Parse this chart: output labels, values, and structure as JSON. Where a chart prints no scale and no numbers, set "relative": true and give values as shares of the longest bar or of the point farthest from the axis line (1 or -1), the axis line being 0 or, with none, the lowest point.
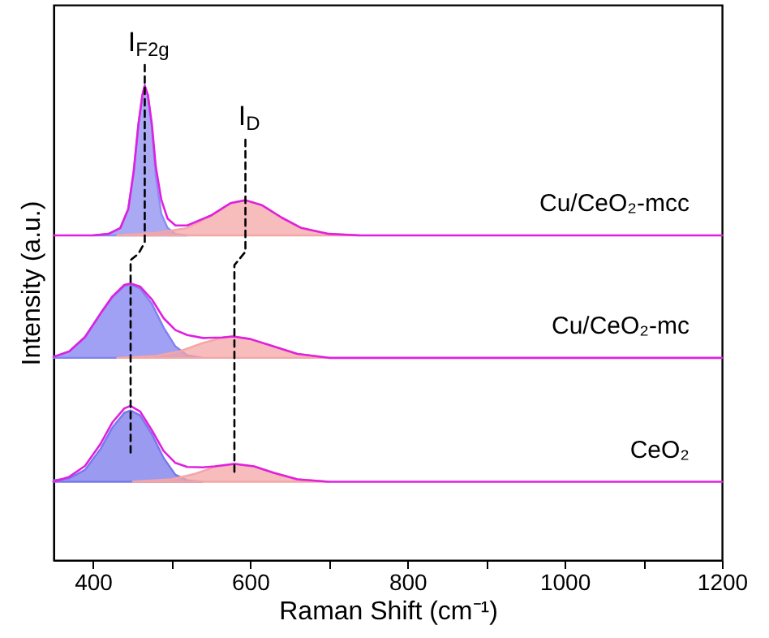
{
  "chart_data": {
    "type": "area",
    "relative": true,
    "xlabel": "Raman Shift (cm⁻¹)",
    "ylabel": "Intensity (a.u.)",
    "xlim": [
      350,
      1200
    ],
    "xticks": [
      400,
      {
        "value": 500,
        "label": null
      },
      600,
      {
        "value": 700,
        "label": null
      },
      800,
      {
        "value": 900,
        "label": null
      },
      1000,
      {
        "value": 1100,
        "label": null
      },
      1200
    ],
    "grid": false,
    "series": [
      {
        "color": "#8c8cf0",
        "x": [
          400,
          420,
          435,
          445,
          452,
          458,
          463,
          466,
          470,
          475,
          480,
          487,
          495,
          505,
          520
        ],
        "values": [
          0.655,
          0.658,
          0.67,
          0.708,
          0.785,
          0.88,
          0.938,
          0.957,
          0.938,
          0.871,
          0.775,
          0.699,
          0.67,
          0.658,
          0.655
        ]
      },
      {
        "color": "#f4a6a6",
        "x": [
          430,
          480,
          520,
          550,
          575,
          594,
          615,
          640,
          665,
          700,
          740
        ],
        "values": [
          0.655,
          0.66,
          0.67,
          0.694,
          0.72,
          0.726,
          0.716,
          0.691,
          0.67,
          0.658,
          0.655
        ]
      },
      {
        "type": "line",
        "name": "Cu/CeO₂-mcc",
        "color": "#e020e0",
        "x": [
          350,
          400,
          420,
          435,
          445,
          452,
          458,
          463,
          466,
          470,
          475,
          480,
          487,
          495,
          505,
          520,
          550,
          575,
          594,
          615,
          640,
          665,
          700,
          740,
          1200
        ],
        "values": [
          0.655,
          0.655,
          0.658,
          0.67,
          0.708,
          0.785,
          0.88,
          0.938,
          0.957,
          0.938,
          0.88,
          0.794,
          0.727,
          0.689,
          0.675,
          0.675,
          0.695,
          0.72,
          0.726,
          0.716,
          0.691,
          0.67,
          0.658,
          0.655,
          0.655
        ]
      },
      {
        "color": "#8080f0",
        "x": [
          350,
          370,
          390,
          410,
          425,
          440,
          448,
          460,
          475,
          490,
          505,
          520,
          540
        ],
        "values": [
          0.41,
          0.421,
          0.45,
          0.498,
          0.531,
          0.553,
          0.556,
          0.548,
          0.517,
          0.469,
          0.431,
          0.413,
          0.408
        ]
      },
      {
        "color": "#f4a6a6",
        "x": [
          430,
          480,
          510,
          540,
          565,
          578,
          600,
          630,
          660,
          700
        ],
        "values": [
          0.408,
          0.412,
          0.421,
          0.438,
          0.449,
          0.451,
          0.446,
          0.431,
          0.416,
          0.408
        ]
      },
      {
        "type": "line",
        "name": "Cu/CeO₂-mc",
        "color": "#e020e0",
        "x": [
          350,
          370,
          390,
          410,
          425,
          440,
          448,
          460,
          475,
          490,
          505,
          520,
          540,
          565,
          578,
          600,
          630,
          660,
          700,
          1200
        ],
        "values": [
          0.41,
          0.421,
          0.45,
          0.498,
          0.532,
          0.555,
          0.558,
          0.552,
          0.526,
          0.488,
          0.464,
          0.454,
          0.448,
          0.449,
          0.451,
          0.446,
          0.431,
          0.416,
          0.408,
          0.408
        ]
      },
      {
        "color": "#7878ec",
        "x": [
          350,
          370,
          390,
          410,
          425,
          440,
          448,
          460,
          475,
          490,
          505,
          520,
          540
        ],
        "values": [
          0.161,
          0.165,
          0.182,
          0.225,
          0.268,
          0.297,
          0.302,
          0.292,
          0.254,
          0.206,
          0.172,
          0.161,
          0.158
        ]
      },
      {
        "color": "#f4a6a6",
        "x": [
          450,
          500,
          530,
          555,
          580,
          605,
          630,
          660,
          700
        ],
        "values": [
          0.158,
          0.163,
          0.174,
          0.188,
          0.194,
          0.189,
          0.176,
          0.163,
          0.158
        ]
      },
      {
        "type": "line",
        "name": "CeO₂",
        "color": "#e020e0",
        "x": [
          350,
          370,
          390,
          410,
          425,
          440,
          448,
          460,
          475,
          490,
          505,
          520,
          540,
          555,
          580,
          605,
          630,
          660,
          700,
          1200
        ],
        "values": [
          0.158,
          0.168,
          0.19,
          0.235,
          0.278,
          0.306,
          0.311,
          0.3,
          0.262,
          0.22,
          0.196,
          0.188,
          0.187,
          0.189,
          0.194,
          0.189,
          0.176,
          0.163,
          0.158,
          0.158
        ]
      },
      {
        "type": "line",
        "color": "#000000",
        "line_style": "dashed",
        "x": [
          448,
          448,
          458,
          466,
          466
        ],
        "values": [
          0.217,
          0.605,
          0.618,
          0.641,
          1.0
        ]
      },
      {
        "type": "line",
        "color": "#000000",
        "line_style": "dashed",
        "x": [
          580,
          580,
          594,
          594
        ],
        "values": [
          0.178,
          0.595,
          0.622,
          0.852
        ]
      }
    ],
    "annotations": [
      {
        "text": "I$_{F2g}$",
        "x": 466,
        "y": 1.0
      },
      {
        "text": "I$_{D}$",
        "x": 594,
        "y": 0.852
      }
    ]
  }
}
